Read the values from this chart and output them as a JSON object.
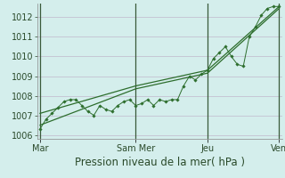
{
  "background_color": "#d4eeec",
  "grid_color": "#c0b8cc",
  "line_color": "#2d6e2d",
  "marker_color": "#2d6e2d",
  "x_tick_labels": [
    "Mar",
    "Sam Mer",
    "Jeu",
    "Ven"
  ],
  "x_tick_positions": [
    0,
    96,
    168,
    240
  ],
  "x_vlines": [
    0,
    96,
    168,
    240
  ],
  "ylim": [
    1005.8,
    1012.7
  ],
  "yticks": [
    1006,
    1007,
    1008,
    1009,
    1010,
    1011,
    1012
  ],
  "xlabel": "Pression niveau de la mer( hPa )",
  "xlabel_fontsize": 8.5,
  "tick_fontsize": 7,
  "total_x": 240,
  "line1": {
    "x": [
      0,
      96,
      168,
      240
    ],
    "y": [
      1007.1,
      1008.5,
      1009.3,
      1012.55
    ]
  },
  "line2": {
    "x": [
      0,
      96,
      168,
      240
    ],
    "y": [
      1006.5,
      1008.35,
      1009.15,
      1012.45
    ]
  },
  "line3": {
    "x": [
      0,
      6,
      12,
      18,
      24,
      30,
      36,
      42,
      48,
      54,
      60,
      66,
      72,
      78,
      84,
      90,
      96,
      102,
      108,
      114,
      120,
      126,
      132,
      138,
      144,
      150,
      156,
      162,
      168,
      174,
      180,
      186,
      192,
      198,
      204,
      210,
      216,
      222,
      228,
      234,
      240
    ],
    "y": [
      1006.3,
      1006.8,
      1007.1,
      1007.4,
      1007.7,
      1007.8,
      1007.8,
      1007.5,
      1007.2,
      1007.0,
      1007.5,
      1007.3,
      1007.2,
      1007.5,
      1007.7,
      1007.8,
      1007.5,
      1007.6,
      1007.8,
      1007.5,
      1007.8,
      1007.7,
      1007.8,
      1007.8,
      1008.5,
      1009.0,
      1008.8,
      1009.1,
      1009.3,
      1009.9,
      1010.2,
      1010.5,
      1010.0,
      1009.6,
      1009.5,
      1011.0,
      1011.5,
      1012.1,
      1012.45,
      1012.55,
      1012.55
    ]
  }
}
